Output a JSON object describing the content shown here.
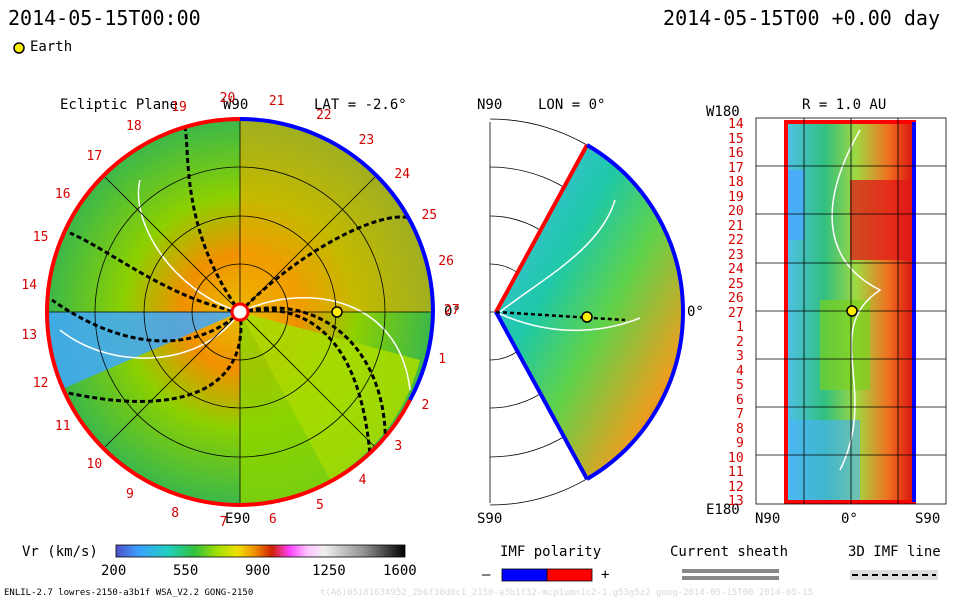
{
  "header": {
    "left_timestamp": "2014-05-15T00:00",
    "right_timestamp": "2014-05-15T00 +0.00 day"
  },
  "legend": {
    "earth_label": "Earth"
  },
  "ecliptic": {
    "title": "Ecliptic Plane",
    "lat_label": "LAT = -2.6°",
    "top_label": "W90",
    "bottom_label": "E90",
    "right_label": "0°",
    "rim_numbers": [
      "19",
      "20",
      "21",
      "22",
      "23",
      "24",
      "25",
      "26",
      "27",
      "1",
      "2",
      "3",
      "4",
      "5",
      "6",
      "7",
      "8",
      "9",
      "10",
      "11",
      "12",
      "13",
      "14",
      "15",
      "16",
      "17",
      "18"
    ]
  },
  "meridional": {
    "lon_label": "LON = 0°",
    "top_label": "N90",
    "bottom_label": "S90",
    "right_label": "0°"
  },
  "radial": {
    "title": "R = 1.0 AU",
    "top_left": "W180",
    "bottom_left": "E180",
    "bottom_labels": [
      "N90",
      "0°",
      "S90"
    ],
    "rotation_labels": [
      "14",
      "15",
      "16",
      "17",
      "18",
      "19",
      "20",
      "21",
      "22",
      "23",
      "24",
      "25",
      "26",
      "27",
      "1",
      "2",
      "3",
      "4",
      "5",
      "6",
      "7",
      "8",
      "9",
      "10",
      "11",
      "12",
      "13"
    ]
  },
  "colorbar": {
    "label": "Vr (km/s)",
    "ticks": [
      "200",
      "550",
      "900",
      "1250",
      "1600"
    ],
    "range": [
      200,
      1600
    ]
  },
  "imf_legend": {
    "title": "IMF polarity",
    "minus": "–",
    "plus": "+",
    "colors": {
      "minus": "#0000ff",
      "plus": "#ff0000"
    }
  },
  "sheath_legend": {
    "title": "Current sheath"
  },
  "imf_line_legend": {
    "title": "3D IMF line"
  },
  "footer": {
    "model_info": "ENLIL-2.7 lowres-2150-a3b1f WSA_V2.2 GONG-2150",
    "watermark": "t(A6)05181634952_2b6f30d0c1_2150-a3b1f32-mcp1umn1c2-1.g53g5z2 gong-2014-05-15T00   2014-05-15"
  },
  "chart_data": [
    {
      "type": "heatmap",
      "title": "Ecliptic Plane",
      "variable": "Vr (km/s)",
      "range": [
        200,
        1600
      ],
      "earth_position": {
        "r_au": 1.0,
        "lon_deg": 0
      }
    },
    {
      "type": "heatmap",
      "title": "LON = 0°",
      "variable": "Vr (km/s)",
      "range": [
        200,
        1600
      ],
      "earth_position": {
        "r_au": 1.0,
        "lat_deg": 0
      }
    },
    {
      "type": "heatmap",
      "title": "R = 1.0 AU",
      "variable": "Vr (km/s)",
      "range": [
        200,
        1600
      ]
    }
  ]
}
